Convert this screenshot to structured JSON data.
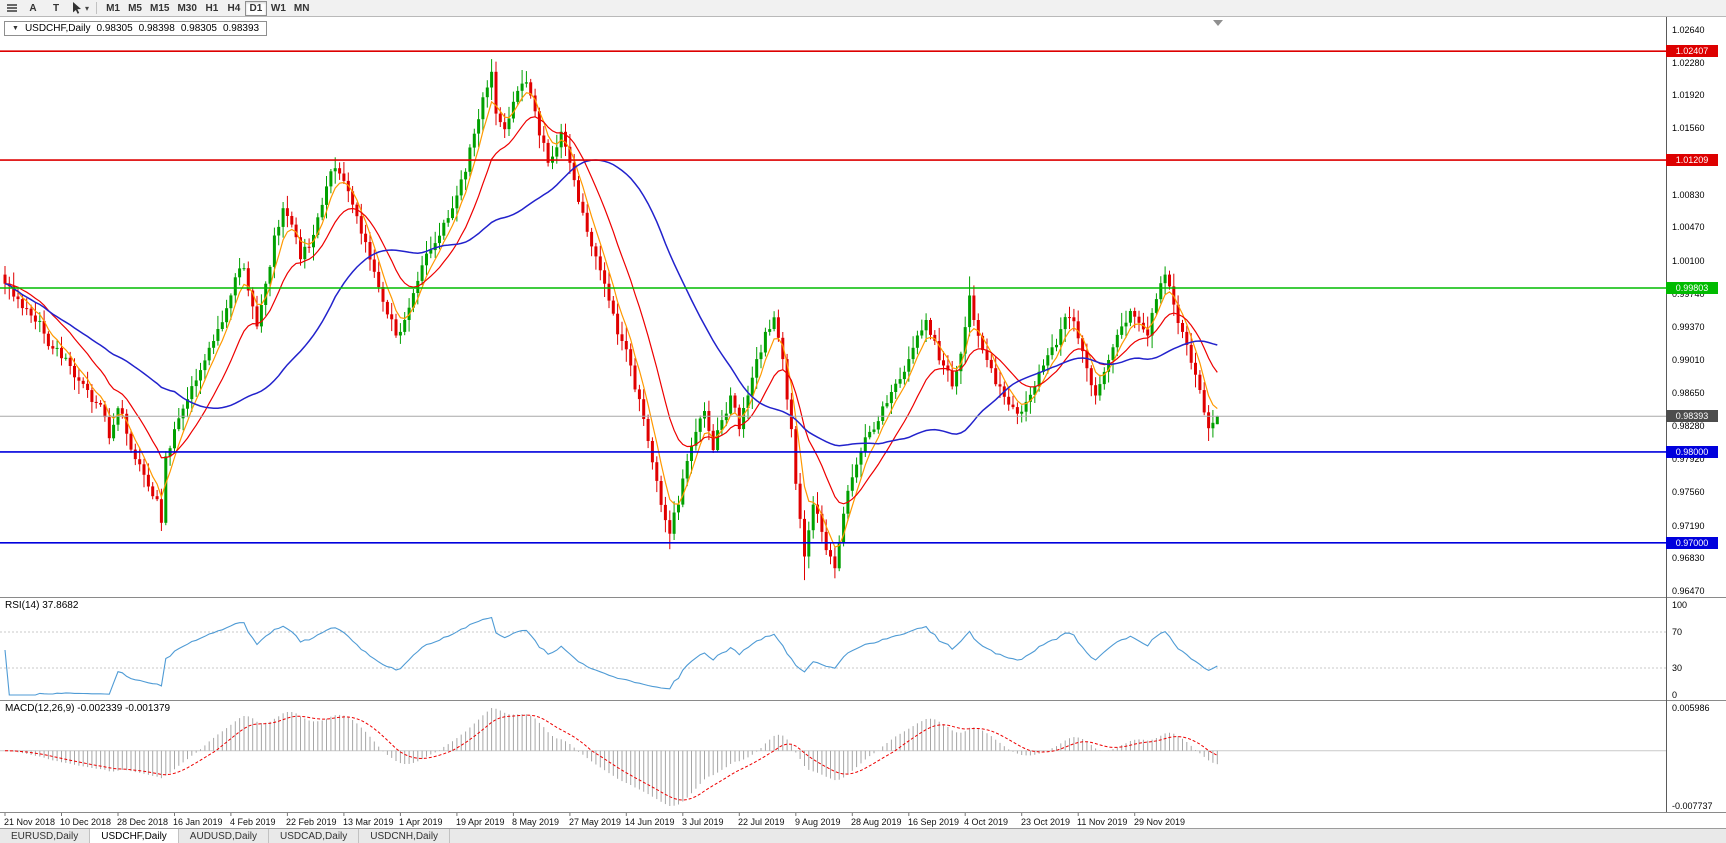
{
  "toolbar": {
    "icons": [
      "chart-list-icon",
      "cursor-tool-icon",
      "dropdown-caret-icon"
    ],
    "letter_buttons": [
      "A",
      "T"
    ],
    "timeframes": [
      {
        "label": "M1"
      },
      {
        "label": "M5"
      },
      {
        "label": "M15"
      },
      {
        "label": "M30"
      },
      {
        "label": "H1"
      },
      {
        "label": "H4"
      },
      {
        "label": "D1",
        "active": true
      },
      {
        "label": "W1"
      },
      {
        "label": "MN"
      }
    ]
  },
  "chart": {
    "title": {
      "symbol": "USDCHF,Daily",
      "open": "0.98305",
      "high": "0.98398",
      "low": "0.98305",
      "close": "0.98393"
    },
    "price_axis": {
      "labels": [
        "1.02640",
        "1.02280",
        "1.01920",
        "1.01560",
        "1.00830",
        "1.00470",
        "1.00100",
        "0.99740",
        "0.99370",
        "0.99010",
        "0.98650",
        "0.98280",
        "0.97920",
        "0.97560",
        "0.97190",
        "0.96830",
        "0.96470"
      ],
      "top_price": 1.0264,
      "bottom_price": 0.9647
    },
    "levels": [
      {
        "label": "1.02407",
        "price": 1.02407,
        "color": "#DD0000"
      },
      {
        "label": "1.01209",
        "price": 1.01209,
        "color": "#DD0000"
      },
      {
        "label": "0.99803",
        "price": 0.99803,
        "color": "#00BB00"
      },
      {
        "label": "0.98000",
        "price": 0.98,
        "color": "#0000DD"
      },
      {
        "label": "0.97000",
        "price": 0.97,
        "color": "#0000DD"
      }
    ],
    "current_price": {
      "label": "0.98393",
      "price": 0.98393,
      "tag_color": "#4D4D4D",
      "line_color": "#A8A8A8"
    },
    "date_axis": {
      "labels": [
        "21 Nov 2018",
        "10 Dec 2018",
        "28 Dec 2018",
        "16 Jan 2019",
        "4 Feb 2019",
        "22 Feb 2019",
        "13 Mar 2019",
        "1 Apr 2019",
        "19 Apr 2019",
        "8 May 2019",
        "27 May 2019",
        "14 Jun 2019",
        "3 Jul 2019",
        "22 Jul 2019",
        "9 Aug 2019",
        "28 Aug 2019",
        "16 Sep 2019",
        "4 Oct 2019",
        "23 Oct 2019",
        "11 Nov 2019",
        "29 Nov 2019"
      ],
      "bars_per_label": 13
    }
  },
  "rsi": {
    "label": "RSI(14) 37.8682",
    "period": 14,
    "value": "37.8682",
    "scale_labels": [
      "100",
      "70",
      "30",
      "0"
    ],
    "scale_values": [
      100,
      70,
      30,
      0
    ],
    "dashed_levels": [
      70,
      30
    ],
    "line_color": "#4F9BD5"
  },
  "macd": {
    "label": "MACD(12,26,9) -0.002339 -0.001379",
    "main_value": "-0.002339",
    "signal_value": "-0.001379",
    "scale_max_label": "0.005986",
    "scale_min_label": "-0.007737",
    "scale_max": 0.005986,
    "scale_min": -0.007737,
    "hist_color": "#A6A6A6",
    "signal_color": "#EE0000"
  },
  "tabs": [
    {
      "label": "EURUSD,Daily"
    },
    {
      "label": "USDCHF,Daily",
      "active": true
    },
    {
      "label": "AUDUSD,Daily"
    },
    {
      "label": "USDCAD,Daily"
    },
    {
      "label": "USDCNH,Daily"
    }
  ],
  "chart_data": {
    "type": "candlestick",
    "symbol": "USDCHF",
    "timeframe": "Daily",
    "bars": 280,
    "candle_colors": {
      "up": "#00A000",
      "down": "#E00000"
    },
    "ma_colors": {
      "fast": "#FF9900",
      "mid": "#EE0000",
      "slow": "#2222CC"
    },
    "anchors": [
      [
        0,
        0.9985
      ],
      [
        3,
        0.9968
      ],
      [
        6,
        0.995
      ],
      [
        9,
        0.993
      ],
      [
        13,
        0.9903
      ],
      [
        16,
        0.9882
      ],
      [
        19,
        0.9868
      ],
      [
        22,
        0.9852
      ],
      [
        24,
        0.9815
      ],
      [
        26,
        0.9848
      ],
      [
        28,
        0.982
      ],
      [
        30,
        0.9792
      ],
      [
        33,
        0.9762
      ],
      [
        35,
        0.9748
      ],
      [
        36,
        0.9722
      ],
      [
        37,
        0.9795
      ],
      [
        39,
        0.9825
      ],
      [
        42,
        0.9858
      ],
      [
        45,
        0.989
      ],
      [
        48,
        0.9922
      ],
      [
        51,
        0.9958
      ],
      [
        53,
        0.9992
      ],
      [
        55,
        1.0002
      ],
      [
        57,
        0.996
      ],
      [
        58,
        0.9938
      ],
      [
        60,
        0.9985
      ],
      [
        62,
        1.0038
      ],
      [
        64,
        1.0068
      ],
      [
        66,
        1.005
      ],
      [
        68,
        1.0012
      ],
      [
        70,
        1.0025
      ],
      [
        72,
        1.0058
      ],
      [
        74,
        1.0092
      ],
      [
        76,
        1.0112
      ],
      [
        78,
        1.0098
      ],
      [
        80,
        1.0072
      ],
      [
        82,
        1.004
      ],
      [
        85,
        0.9998
      ],
      [
        87,
        0.9965
      ],
      [
        90,
        0.9928
      ],
      [
        92,
        0.9945
      ],
      [
        95,
        0.9988
      ],
      [
        98,
        1.0022
      ],
      [
        101,
        1.0052
      ],
      [
        104,
        1.0082
      ],
      [
        106,
        1.0108
      ],
      [
        108,
        1.015
      ],
      [
        110,
        1.019
      ],
      [
        112,
        1.0218
      ],
      [
        113,
        1.0172
      ],
      [
        115,
        1.0155
      ],
      [
        117,
        1.0185
      ],
      [
        119,
        1.0205
      ],
      [
        121,
        1.0192
      ],
      [
        123,
        1.0148
      ],
      [
        125,
        1.0118
      ],
      [
        127,
        1.0135
      ],
      [
        128,
        1.0152
      ],
      [
        130,
        1.0118
      ],
      [
        132,
        1.0075
      ],
      [
        134,
        1.0042
      ],
      [
        136,
        1.0015
      ],
      [
        138,
        0.9985
      ],
      [
        140,
        0.9952
      ],
      [
        142,
        0.9922
      ],
      [
        144,
        0.9895
      ],
      [
        146,
        0.9858
      ],
      [
        148,
        0.9812
      ],
      [
        150,
        0.9768
      ],
      [
        152,
        0.9725
      ],
      [
        153,
        0.971
      ],
      [
        155,
        0.9742
      ],
      [
        157,
        0.979
      ],
      [
        159,
        0.9822
      ],
      [
        161,
        0.9845
      ],
      [
        163,
        0.9802
      ],
      [
        165,
        0.9835
      ],
      [
        167,
        0.9862
      ],
      [
        169,
        0.9825
      ],
      [
        171,
        0.9862
      ],
      [
        173,
        0.9902
      ],
      [
        175,
        0.9932
      ],
      [
        177,
        0.9948
      ],
      [
        179,
        0.9902
      ],
      [
        181,
        0.9825
      ],
      [
        182,
        0.9765
      ],
      [
        184,
        0.9685
      ],
      [
        186,
        0.9742
      ],
      [
        188,
        0.9712
      ],
      [
        190,
        0.9685
      ],
      [
        191,
        0.9672
      ],
      [
        193,
        0.9732
      ],
      [
        195,
        0.9772
      ],
      [
        197,
        0.98
      ],
      [
        199,
        0.9822
      ],
      [
        202,
        0.985
      ],
      [
        205,
        0.9875
      ],
      [
        208,
        0.9902
      ],
      [
        210,
        0.9928
      ],
      [
        212,
        0.9945
      ],
      [
        214,
        0.9922
      ],
      [
        216,
        0.9895
      ],
      [
        218,
        0.9872
      ],
      [
        220,
        0.9908
      ],
      [
        222,
        0.9972
      ],
      [
        223,
        0.9945
      ],
      [
        225,
        0.9912
      ],
      [
        227,
        0.9892
      ],
      [
        229,
        0.9872
      ],
      [
        231,
        0.9852
      ],
      [
        233,
        0.9842
      ],
      [
        235,
        0.9855
      ],
      [
        237,
        0.9872
      ],
      [
        239,
        0.9895
      ],
      [
        241,
        0.9915
      ],
      [
        243,
        0.9935
      ],
      [
        245,
        0.9948
      ],
      [
        247,
        0.9925
      ],
      [
        249,
        0.9892
      ],
      [
        251,
        0.9862
      ],
      [
        253,
        0.9888
      ],
      [
        255,
        0.9915
      ],
      [
        257,
        0.9938
      ],
      [
        259,
        0.9955
      ],
      [
        261,
        0.9942
      ],
      [
        263,
        0.9928
      ],
      [
        265,
        0.9968
      ],
      [
        267,
        0.9995
      ],
      [
        268,
        0.9982
      ],
      [
        269,
        0.9962
      ],
      [
        271,
        0.9932
      ],
      [
        273,
        0.9898
      ],
      [
        275,
        0.9868
      ],
      [
        277,
        0.9826
      ],
      [
        278,
        0.9832
      ],
      [
        279,
        0.98393
      ]
    ],
    "overrides": {
      "36": {
        "l": 0.9713
      },
      "76": {
        "h": 1.0124
      },
      "112": {
        "h": 1.0232
      },
      "119": {
        "h": 1.022
      },
      "153": {
        "l": 0.9693
      },
      "184": {
        "l": 0.9659
      },
      "191": {
        "l": 0.9661
      },
      "222": {
        "h": 0.9993
      },
      "267": {
        "h": 1.0004
      },
      "277": {
        "l": 0.9812
      },
      "279": {
        "o": 0.98305,
        "h": 0.98398,
        "l": 0.98305,
        "c": 0.98393
      }
    }
  }
}
